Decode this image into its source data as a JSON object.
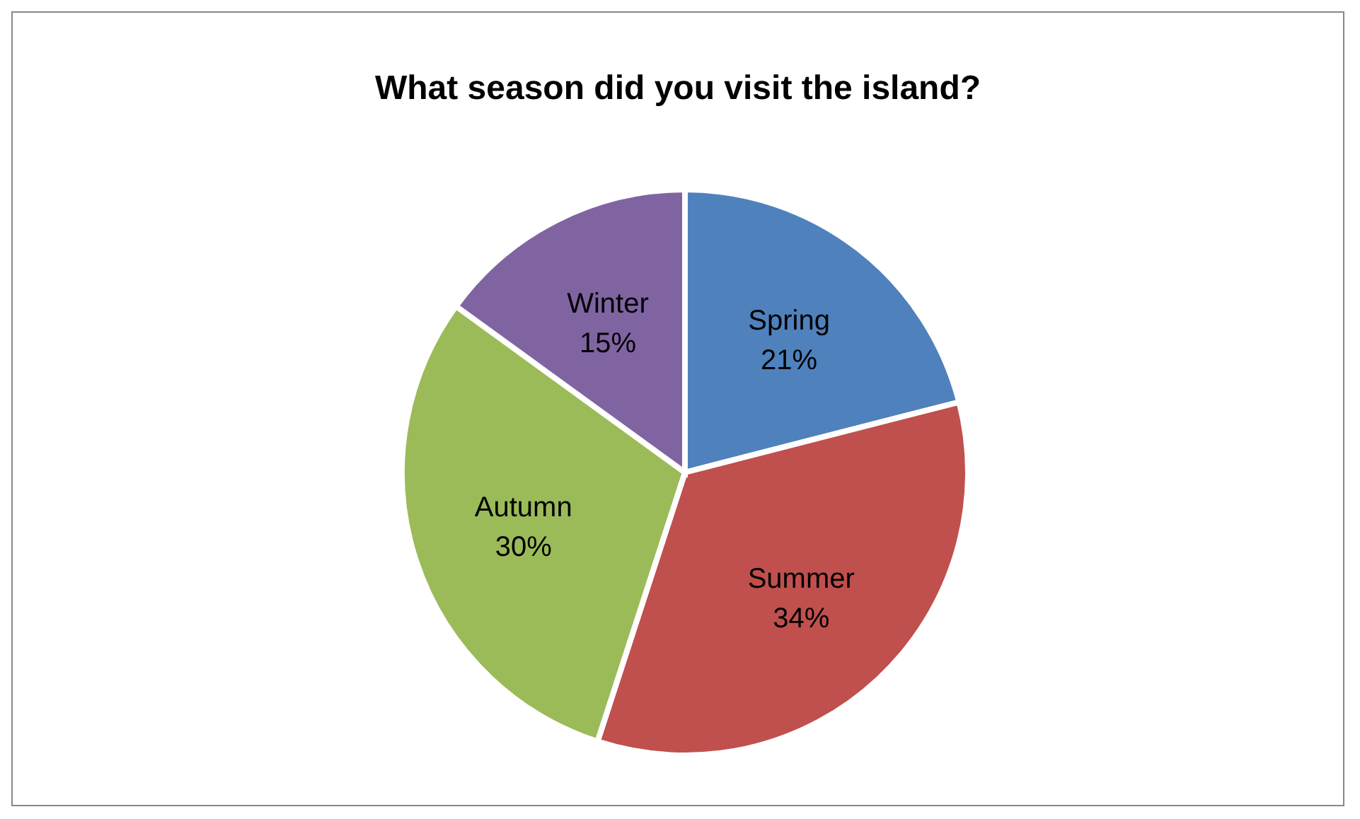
{
  "chart_data": {
    "type": "pie",
    "title": "What season did you visit the island?",
    "categories": [
      "Spring",
      "Summer",
      "Autumn",
      "Winter"
    ],
    "values": [
      21,
      34,
      30,
      15
    ],
    "value_labels": [
      "21%",
      "34%",
      "30%",
      "15%"
    ],
    "colors": [
      "#4f81bd",
      "#c0504d",
      "#9bbb59",
      "#8064a2"
    ]
  }
}
